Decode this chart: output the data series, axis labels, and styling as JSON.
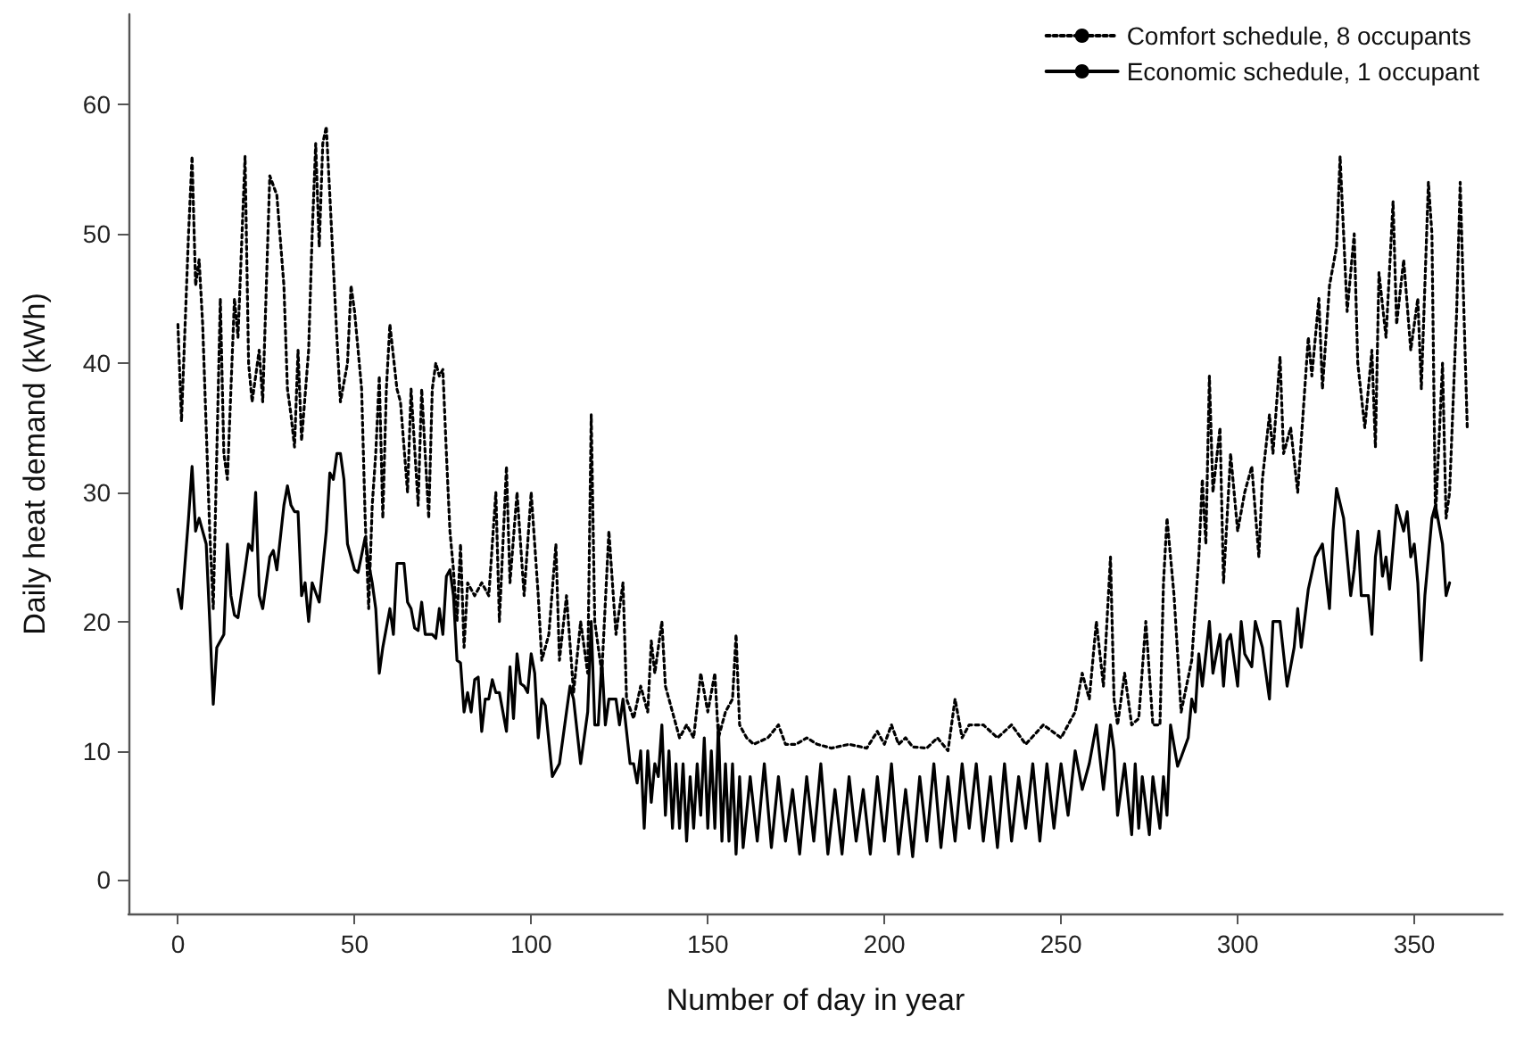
{
  "chart_data": {
    "type": "line",
    "xlabel": "Number of day in year",
    "ylabel": "Daily heat demand (kWh)",
    "xlim": [
      -14,
      375
    ],
    "ylim": [
      -2.6,
      67
    ],
    "xticks": [
      0,
      50,
      100,
      150,
      200,
      250,
      300,
      350
    ],
    "yticks": [
      0,
      10,
      20,
      30,
      40,
      50,
      60
    ],
    "grid": false,
    "legend": "top right",
    "marker": "none",
    "series": [
      {
        "name": "Comfort schedule, 8 occupants",
        "color": "#000000",
        "line_style": "dotted",
        "x": [
          0,
          1,
          3,
          4,
          5,
          6,
          7,
          9,
          10,
          12,
          13,
          14,
          16,
          17,
          19,
          20,
          21,
          23,
          24,
          26,
          28,
          30,
          31,
          32,
          33,
          34,
          35,
          37,
          38,
          39,
          40,
          41,
          42,
          43,
          45,
          46,
          48,
          49,
          50,
          52,
          53,
          54,
          55,
          56,
          57,
          58,
          59,
          60,
          62,
          63,
          65,
          66,
          68,
          69,
          71,
          72,
          73,
          74,
          75,
          76,
          77,
          78,
          79,
          80,
          81,
          82,
          84,
          86,
          88,
          90,
          91,
          93,
          94,
          96,
          98,
          100,
          102,
          103,
          105,
          107,
          108,
          110,
          112,
          114,
          116,
          117,
          118,
          120,
          122,
          124,
          126,
          127,
          129,
          131,
          133,
          134,
          135,
          137,
          138,
          140,
          142,
          144,
          146,
          148,
          150,
          152,
          153,
          155,
          157,
          158,
          159,
          161,
          163,
          167,
          170,
          172,
          175,
          178,
          181,
          185,
          190,
          195,
          198,
          200,
          202,
          204,
          206,
          208,
          212,
          215,
          218,
          220,
          222,
          224,
          228,
          232,
          236,
          240,
          245,
          250,
          252,
          254,
          256,
          258,
          260,
          262,
          264,
          265,
          266,
          268,
          270,
          272,
          274,
          276,
          278,
          279,
          280,
          282,
          284,
          287,
          289,
          290,
          291,
          292,
          293,
          295,
          296,
          298,
          300,
          302,
          304,
          306,
          307,
          309,
          310,
          312,
          313,
          315,
          317,
          318,
          320,
          321,
          323,
          324,
          326,
          328,
          329,
          331,
          333,
          334,
          336,
          338,
          339,
          340,
          342,
          344,
          345,
          347,
          349,
          351,
          352,
          354,
          355,
          356,
          358,
          359,
          360,
          362,
          363,
          365
        ],
        "values": [
          43,
          35.5,
          50,
          56,
          46,
          48,
          43,
          27,
          21,
          45,
          33,
          31,
          45,
          42,
          56,
          40,
          37,
          41,
          37,
          54.5,
          53,
          46,
          38,
          36,
          33.5,
          41,
          34,
          41,
          50,
          57,
          49,
          57,
          58.3,
          53,
          42,
          37,
          40,
          46,
          44,
          38,
          28,
          21,
          29,
          33,
          39,
          28,
          38,
          43,
          38,
          37,
          30,
          38,
          29,
          38,
          28,
          38,
          40,
          39,
          39.5,
          33,
          27,
          24,
          20,
          26,
          18,
          23,
          22,
          23,
          22,
          30,
          20,
          32,
          23,
          30,
          22,
          30,
          22,
          17,
          19,
          26,
          17,
          22,
          14.5,
          20,
          16,
          36,
          20,
          16,
          27,
          19,
          23,
          14,
          12.5,
          15,
          13,
          18.5,
          16,
          20,
          15,
          13,
          11,
          12,
          11,
          16,
          13,
          16,
          11,
          13,
          14,
          19,
          12,
          11,
          10.5,
          11,
          12,
          10.5,
          10.5,
          11,
          10.5,
          10.2,
          10.5,
          10.2,
          11.5,
          10.5,
          12,
          10.5,
          11,
          10.3,
          10.2,
          11,
          10,
          14,
          11,
          12,
          12,
          11,
          12,
          10.5,
          12,
          11,
          12,
          13,
          16,
          14,
          20,
          15,
          25,
          14,
          12,
          16,
          12,
          12.5,
          20,
          12,
          12,
          23,
          28,
          22,
          13,
          17,
          25,
          31,
          26,
          39,
          30,
          35,
          23,
          33,
          27,
          30,
          32,
          25,
          31,
          36,
          33,
          40.5,
          33,
          35,
          30,
          34,
          42,
          39,
          45,
          38,
          46,
          49,
          56,
          44,
          50,
          40,
          35,
          41,
          33.5,
          47,
          42,
          52.5,
          43,
          48,
          41,
          45,
          38,
          54,
          50,
          28,
          40,
          28,
          30,
          44,
          54,
          35
        ]
      },
      {
        "name": "Economic schedule, 1 occupant",
        "color": "#000000",
        "line_style": "solid",
        "x": [
          0,
          1,
          3,
          4,
          5,
          6,
          7,
          8,
          9,
          10,
          11,
          13,
          14,
          15,
          16,
          17,
          19,
          20,
          21,
          22,
          23,
          24,
          26,
          27,
          28,
          30,
          31,
          32,
          33,
          34,
          35,
          36,
          37,
          38,
          40,
          42,
          43,
          44,
          45,
          46,
          47,
          48,
          50,
          51,
          53,
          54,
          55,
          56,
          57,
          58,
          60,
          61,
          62,
          64,
          65,
          66,
          67,
          68,
          69,
          70,
          72,
          73,
          74,
          75,
          76,
          77,
          78,
          79,
          80,
          81,
          82,
          83,
          84,
          85,
          86,
          87,
          88,
          89,
          90,
          91,
          92,
          93,
          94,
          95,
          96,
          97,
          98,
          99,
          100,
          101,
          102,
          103,
          104,
          106,
          108,
          110,
          111,
          112,
          114,
          116,
          117,
          118,
          119,
          120,
          121,
          122,
          124,
          125,
          126,
          128,
          129,
          130,
          131,
          132,
          133,
          134,
          135,
          136,
          137,
          138,
          139,
          140,
          141,
          142,
          143,
          144,
          145,
          146,
          147,
          148,
          149,
          150,
          151,
          152,
          153,
          154,
          155,
          156,
          157,
          158,
          159,
          160,
          162,
          164,
          166,
          168,
          170,
          172,
          174,
          176,
          178,
          180,
          182,
          184,
          186,
          188,
          190,
          192,
          194,
          196,
          198,
          200,
          202,
          204,
          206,
          208,
          210,
          212,
          214,
          216,
          218,
          220,
          222,
          224,
          226,
          228,
          230,
          232,
          234,
          236,
          238,
          240,
          242,
          244,
          246,
          248,
          250,
          252,
          254,
          256,
          258,
          260,
          262,
          264,
          265,
          266,
          268,
          270,
          271,
          272,
          273,
          275,
          276,
          278,
          279,
          280,
          281,
          283,
          284,
          286,
          287,
          288,
          289,
          290,
          292,
          293,
          295,
          296,
          297,
          298,
          300,
          301,
          302,
          304,
          305,
          307,
          309,
          310,
          312,
          314,
          316,
          317,
          318,
          320,
          322,
          324,
          326,
          327,
          328,
          330,
          332,
          333,
          334,
          335,
          337,
          338,
          339,
          340,
          341,
          342,
          343,
          345,
          346,
          347,
          348,
          349,
          350,
          351,
          352,
          353,
          354,
          355,
          356,
          358,
          359,
          360
        ],
        "values": [
          22.5,
          21,
          28,
          32,
          27,
          28,
          27,
          26,
          20,
          13.6,
          18,
          19,
          26,
          22,
          20.5,
          20.3,
          24,
          26,
          25.5,
          30,
          22,
          21,
          25,
          25.5,
          24,
          29,
          30.5,
          29,
          28.5,
          28.5,
          22,
          23,
          20,
          23,
          21.5,
          27,
          31.5,
          31,
          33,
          33,
          31,
          26,
          24,
          23.8,
          26.5,
          24.5,
          23,
          21,
          16,
          18,
          21,
          19,
          24.5,
          24.5,
          21.5,
          21,
          19.5,
          19.3,
          21.5,
          19,
          19,
          18.7,
          21,
          19,
          23.5,
          24,
          22,
          17,
          16.8,
          13,
          14.5,
          13,
          15.5,
          15.7,
          11.5,
          14,
          14,
          15.5,
          14.5,
          14.5,
          13,
          11.5,
          16.5,
          12.5,
          17.5,
          15.2,
          15,
          14.5,
          17.5,
          16,
          11,
          14,
          13.5,
          8,
          9,
          13,
          15,
          14,
          9,
          13,
          20,
          12,
          12,
          17,
          12,
          14,
          14,
          12,
          14,
          9,
          9,
          7.5,
          10,
          4,
          10,
          6,
          9,
          8,
          12,
          5,
          10,
          4,
          9,
          4,
          9,
          3,
          8,
          4,
          9,
          5,
          11,
          4,
          10,
          4,
          12,
          3,
          9,
          3,
          9,
          2,
          8,
          2.5,
          8,
          3,
          9,
          2.5,
          8,
          3,
          7,
          2,
          8,
          3,
          9,
          2,
          7,
          2,
          8,
          3,
          7,
          2,
          8,
          3,
          9,
          2,
          7,
          1.8,
          8,
          3,
          9,
          2.5,
          8,
          3,
          9,
          4,
          9,
          3,
          8,
          2.5,
          9,
          3,
          8,
          4,
          9,
          3,
          9,
          4,
          9,
          5,
          10,
          7,
          9,
          12,
          7,
          12,
          10,
          5,
          9,
          3.5,
          9,
          4,
          8,
          3.5,
          8,
          4,
          8,
          5,
          12,
          8.8,
          9.5,
          11,
          14,
          13,
          17.5,
          15,
          20,
          16,
          19,
          15,
          18.5,
          19,
          15,
          20,
          17.5,
          16.5,
          20,
          18,
          14,
          20,
          20,
          15,
          18,
          21,
          18,
          22.5,
          25,
          26,
          21,
          27,
          30.3,
          28,
          22,
          24,
          27,
          22,
          22,
          19,
          25,
          27,
          23.5,
          25,
          22.5,
          29,
          28,
          27,
          28.5,
          25,
          26,
          23,
          17,
          22,
          25,
          28,
          29,
          26,
          22,
          23
        ]
      }
    ]
  }
}
